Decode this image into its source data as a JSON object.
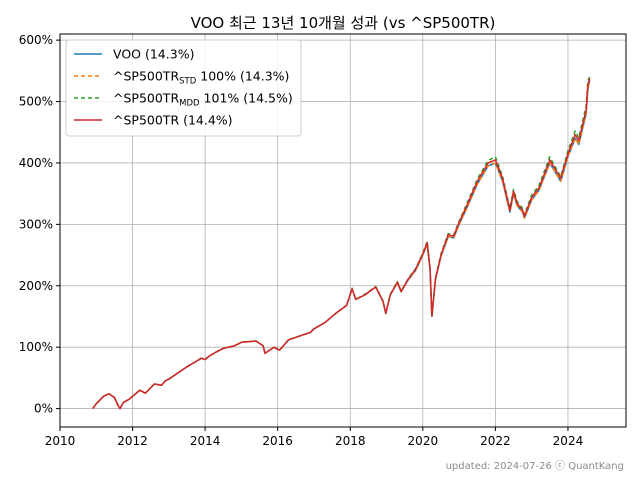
{
  "chart_data": {
    "type": "line",
    "title": "VOO 최근 13년 10개월 성과 (vs ^SP500TR)",
    "xlabel": "",
    "ylabel": "",
    "xlim": [
      2010.0,
      2025.6
    ],
    "ylim": [
      -30,
      610
    ],
    "x_ticks": [
      2010,
      2012,
      2014,
      2016,
      2018,
      2020,
      2022,
      2024
    ],
    "x_tick_labels": [
      "2010",
      "2012",
      "2014",
      "2016",
      "2018",
      "2020",
      "2022",
      "2024"
    ],
    "y_ticks": [
      0,
      100,
      200,
      300,
      400,
      500,
      600
    ],
    "y_tick_labels": [
      "0%",
      "100%",
      "200%",
      "300%",
      "400%",
      "500%",
      "600%"
    ],
    "grid": true,
    "legend_position": "top-left",
    "x": [
      2010.9,
      2011.0,
      2011.2,
      2011.35,
      2011.5,
      2011.6,
      2011.65,
      2011.75,
      2011.9,
      2012.0,
      2012.2,
      2012.35,
      2012.6,
      2012.8,
      2012.9,
      2013.0,
      2013.3,
      2013.5,
      2013.7,
      2013.9,
      2014.0,
      2014.1,
      2014.3,
      2014.5,
      2014.8,
      2015.0,
      2015.4,
      2015.6,
      2015.65,
      2015.9,
      2016.05,
      2016.3,
      2016.6,
      2016.9,
      2017.0,
      2017.3,
      2017.6,
      2017.9,
      2018.05,
      2018.15,
      2018.4,
      2018.7,
      2018.9,
      2018.98,
      2019.1,
      2019.3,
      2019.4,
      2019.6,
      2019.8,
      2020.0,
      2020.12,
      2020.2,
      2020.25,
      2020.35,
      2020.5,
      2020.7,
      2020.85,
      2021.0,
      2021.2,
      2021.5,
      2021.8,
      2022.0,
      2022.2,
      2022.4,
      2022.5,
      2022.6,
      2022.75,
      2022.8,
      2023.0,
      2023.2,
      2023.5,
      2023.6,
      2023.8,
      2024.0,
      2024.2,
      2024.3,
      2024.5,
      2024.55,
      2024.6
    ],
    "series": [
      {
        "name": "VOO (14.3%)",
        "color": "#1f77b4",
        "dash": "",
        "values": [
          0,
          8,
          20,
          24,
          18,
          5,
          0,
          10,
          15,
          20,
          30,
          25,
          40,
          38,
          45,
          48,
          60,
          68,
          75,
          82,
          80,
          85,
          92,
          98,
          102,
          108,
          110,
          102,
          90,
          100,
          95,
          112,
          118,
          124,
          130,
          140,
          155,
          168,
          195,
          178,
          185,
          198,
          175,
          155,
          185,
          205,
          190,
          210,
          225,
          250,
          268,
          225,
          150,
          210,
          248,
          280,
          278,
          300,
          325,
          365,
          395,
          400,
          370,
          320,
          350,
          330,
          320,
          310,
          340,
          355,
          400,
          390,
          370,
          410,
          440,
          430,
          480,
          520,
          535
        ]
      },
      {
        "name": "^SP500TR",
        "sub": "STD",
        "suffix": " 100% (14.3%)",
        "color": "#ff7f0e",
        "dash": "4,3",
        "values": [
          0,
          8,
          20,
          24,
          18,
          5,
          0,
          10,
          15,
          20,
          30,
          25,
          40,
          38,
          45,
          48,
          60,
          68,
          75,
          82,
          80,
          85,
          92,
          98,
          102,
          108,
          110,
          102,
          90,
          100,
          95,
          112,
          118,
          124,
          130,
          140,
          155,
          168,
          195,
          178,
          185,
          198,
          175,
          155,
          185,
          205,
          190,
          210,
          225,
          250,
          268,
          225,
          150,
          210,
          248,
          280,
          278,
          300,
          325,
          365,
          395,
          400,
          370,
          320,
          350,
          330,
          320,
          310,
          340,
          355,
          400,
          390,
          370,
          410,
          440,
          430,
          480,
          520,
          535
        ]
      },
      {
        "name": "^SP500TR",
        "sub": "MDD",
        "suffix": " 101% (14.5%)",
        "color": "#2ca02c",
        "dash": "4,3",
        "values": [
          0,
          8,
          20,
          24,
          18,
          5,
          0,
          10,
          15,
          20,
          30,
          25,
          40,
          38,
          45,
          48,
          60,
          68,
          75,
          82,
          80,
          85,
          92,
          98,
          102,
          108,
          110,
          102,
          90,
          100,
          95,
          112,
          118,
          124,
          130,
          140,
          155,
          168,
          196,
          178,
          186,
          199,
          176,
          156,
          186,
          207,
          191,
          212,
          228,
          253,
          272,
          228,
          151,
          213,
          252,
          285,
          283,
          305,
          332,
          373,
          404,
          410,
          378,
          326,
          357,
          337,
          326,
          316,
          348,
          363,
          410,
          399,
          378,
          420,
          452,
          441,
          493,
          535,
          540
        ]
      },
      {
        "name": "^SP500TR (14.4%)",
        "color": "#d62728",
        "dash": "",
        "values": [
          0,
          8,
          20,
          24,
          18,
          5,
          0,
          10,
          15,
          20,
          30,
          25,
          40,
          38,
          45,
          48,
          60,
          68,
          75,
          82,
          80,
          85,
          92,
          98,
          102,
          108,
          110,
          102,
          90,
          100,
          95,
          112,
          118,
          124,
          130,
          140,
          155,
          168,
          195,
          178,
          185,
          198,
          175,
          155,
          185,
          206,
          191,
          211,
          227,
          252,
          270,
          227,
          151,
          212,
          250,
          283,
          281,
          303,
          329,
          370,
          400,
          405,
          375,
          323,
          354,
          334,
          323,
          313,
          344,
          359,
          405,
          395,
          375,
          415,
          446,
          436,
          486,
          527,
          538
        ]
      }
    ]
  },
  "footer": "updated: 2024-07-26 ⓒ QuantKang"
}
